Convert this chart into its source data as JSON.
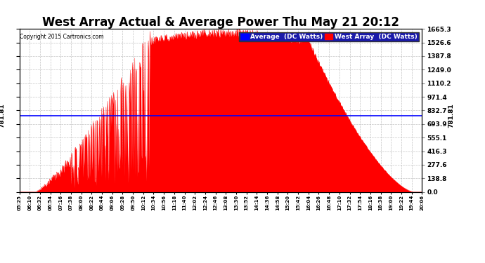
{
  "title": "West Array Actual & Average Power Thu May 21 20:12",
  "copyright": "Copyright 2015 Cartronics.com",
  "avg_value": 781.81,
  "y_max": 1665.3,
  "y_min": 0.0,
  "y_ticks": [
    0.0,
    138.8,
    277.6,
    416.3,
    555.1,
    693.9,
    832.7,
    971.4,
    1110.2,
    1249.0,
    1387.8,
    1526.6,
    1665.3
  ],
  "legend_avg_label": "Average  (DC Watts)",
  "legend_west_label": "West Array  (DC Watts)",
  "bg_color": "#ffffff",
  "grid_color": "#aaaaaa",
  "fill_color": "#ff0000",
  "avg_line_color": "#0000ff",
  "title_fontsize": 12,
  "time_labels": [
    "05:25",
    "06:10",
    "06:32",
    "06:54",
    "07:16",
    "07:38",
    "08:00",
    "08:22",
    "08:44",
    "09:06",
    "09:28",
    "09:50",
    "10:12",
    "10:34",
    "10:56",
    "11:18",
    "11:40",
    "12:02",
    "12:24",
    "12:46",
    "13:08",
    "13:30",
    "13:52",
    "14:14",
    "14:36",
    "14:58",
    "15:20",
    "15:42",
    "16:04",
    "16:26",
    "16:48",
    "17:10",
    "17:32",
    "17:54",
    "18:16",
    "18:38",
    "19:00",
    "19:22",
    "19:44",
    "20:06"
  ]
}
